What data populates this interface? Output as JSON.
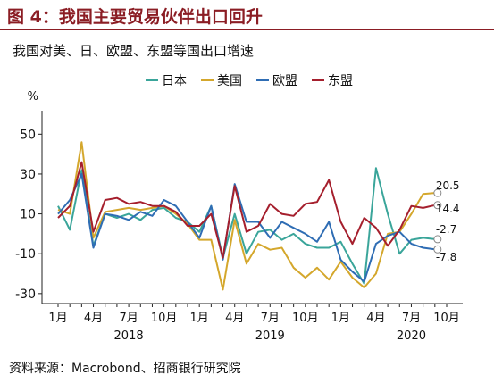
{
  "figure_title": "图 4：我国主要贸易伙伴出口回升",
  "source": "资料来源：Macrobond、招商银行研究院",
  "chart_data": {
    "type": "line",
    "title": "我国对美、日、欧盟、东盟等国出口增速",
    "ylabel": "%",
    "ylim": [
      -35,
      60
    ],
    "yticks": [
      -30,
      -10,
      10,
      30,
      50
    ],
    "x": [
      "2018-01",
      "2018-02",
      "2018-03",
      "2018-04",
      "2018-05",
      "2018-06",
      "2018-07",
      "2018-08",
      "2018-09",
      "2018-10",
      "2018-11",
      "2018-12",
      "2019-01",
      "2019-02",
      "2019-03",
      "2019-04",
      "2019-05",
      "2019-06",
      "2019-07",
      "2019-08",
      "2019-09",
      "2019-10",
      "2019-11",
      "2019-12",
      "2020-01",
      "2020-02",
      "2020-03",
      "2020-04",
      "2020-05",
      "2020-06",
      "2020-07",
      "2020-08",
      "2020-09"
    ],
    "xticks": [
      {
        "x": "2018-01",
        "label": "1月"
      },
      {
        "x": "2018-04",
        "label": "4月"
      },
      {
        "x": "2018-07",
        "label": "7月"
      },
      {
        "x": "2018-10",
        "label": "10月"
      },
      {
        "x": "2019-01",
        "label": "1月"
      },
      {
        "x": "2019-04",
        "label": "4月"
      },
      {
        "x": "2019-07",
        "label": "7月"
      },
      {
        "x": "2019-10",
        "label": "10月"
      },
      {
        "x": "2020-01",
        "label": "1月"
      },
      {
        "x": "2020-04",
        "label": "4月"
      },
      {
        "x": "2020-07",
        "label": "7月"
      },
      {
        "x": "2020-10",
        "label": "10月"
      }
    ],
    "year_labels": [
      {
        "x": "2018-07",
        "label": "2018"
      },
      {
        "x": "2019-07",
        "label": "2019"
      },
      {
        "x": "2020-07",
        "label": "2020"
      }
    ],
    "series": [
      {
        "name": "日本",
        "color": "#3aa59a",
        "values": [
          14,
          2,
          32,
          -6,
          10,
          8,
          10,
          7,
          12,
          13,
          8,
          6,
          1,
          14,
          -12,
          10,
          -10,
          1,
          2,
          -3,
          0,
          -5,
          -7,
          -7,
          -4,
          -15,
          -25,
          33,
          10,
          -10,
          -3,
          -2,
          -2.7
        ]
      },
      {
        "name": "美国",
        "color": "#d4a72c",
        "values": [
          12,
          10,
          46,
          -2,
          11,
          12,
          13,
          12,
          13,
          14,
          10,
          5,
          -3,
          -3,
          -28,
          7,
          -15,
          -5,
          -8,
          -7,
          -17,
          -22,
          -17,
          -23,
          -14,
          -22,
          -27,
          -20,
          0,
          1,
          10,
          20,
          20.5
        ]
      },
      {
        "name": "欧盟",
        "color": "#2f6db4",
        "values": [
          10,
          17,
          30,
          -7,
          10,
          9,
          7,
          11,
          9,
          17,
          14,
          6,
          -2,
          14,
          -13,
          25,
          6,
          6,
          -2,
          6,
          3,
          0,
          -4,
          6,
          -13,
          -19,
          -24,
          -5,
          -1,
          1,
          -5,
          -7,
          -7.8
        ]
      },
      {
        "name": "东盟",
        "color": "#a51f2d",
        "values": [
          8,
          14,
          36,
          1,
          17,
          18,
          15,
          16,
          14,
          14,
          11,
          4,
          4,
          10,
          -12,
          24,
          1,
          4,
          15,
          10,
          9,
          15,
          16,
          27,
          6,
          -5,
          8,
          3,
          -6,
          2,
          14,
          13,
          14.4
        ]
      }
    ],
    "end_labels": [
      "20.5",
      "14.4",
      "-2.7",
      "-7.8"
    ],
    "grid": false,
    "legend_position": "top"
  }
}
